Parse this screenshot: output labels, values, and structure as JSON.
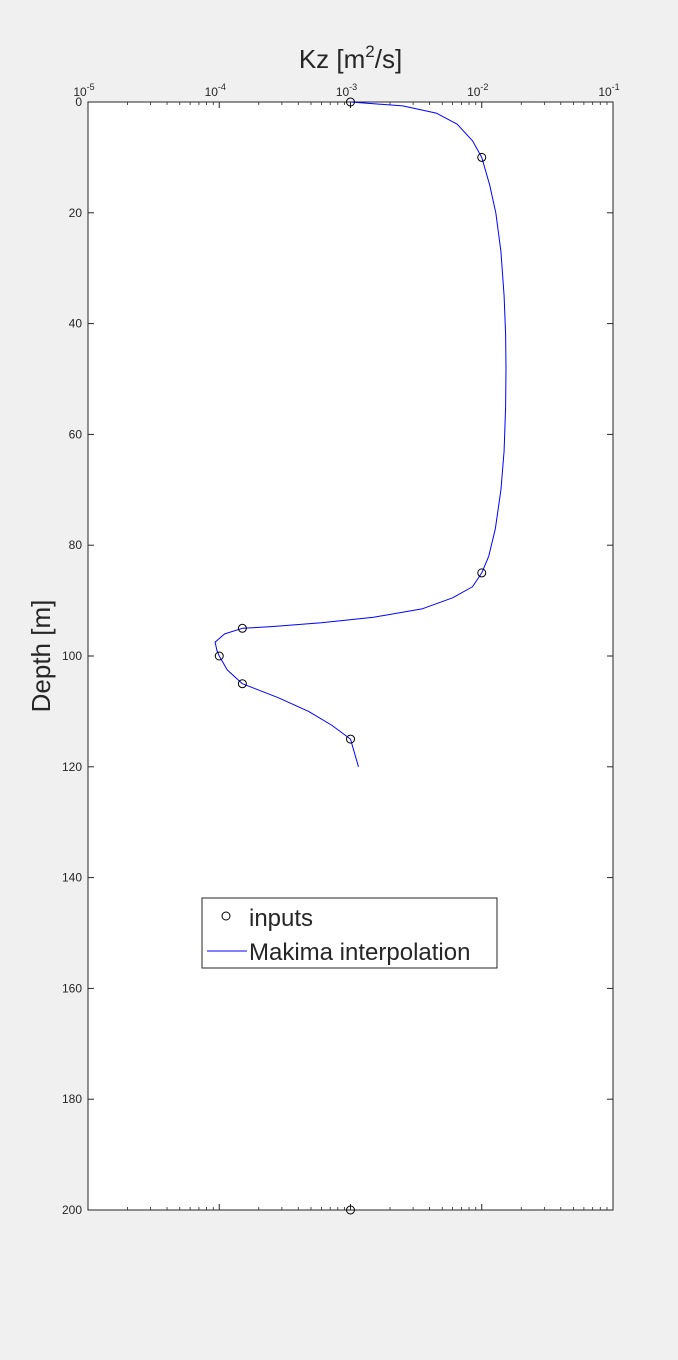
{
  "window": {
    "background": "#f0f0f0"
  },
  "chart_data": {
    "type": "line",
    "xlabel": {
      "base": "Kz [m",
      "superscript": "2",
      "suffix": "/s]"
    },
    "ylabel": "Depth [m]",
    "x_scale": "log",
    "xlim": [
      1e-05,
      0.1
    ],
    "ylim": [
      0,
      200
    ],
    "y_direction": "reversed (0 at top)",
    "x_axis_location": "top",
    "x_ticks": [
      {
        "value": 1e-05,
        "base": "10",
        "exp": "-5"
      },
      {
        "value": 0.0001,
        "base": "10",
        "exp": "-4"
      },
      {
        "value": 0.001,
        "base": "10",
        "exp": "-3"
      },
      {
        "value": 0.01,
        "base": "10",
        "exp": "-2"
      },
      {
        "value": 0.1,
        "base": "10",
        "exp": "-1"
      }
    ],
    "y_ticks": [
      0,
      20,
      40,
      60,
      80,
      100,
      120,
      140,
      160,
      180,
      200
    ],
    "grid": false,
    "legend_position": "center-left",
    "legend": [
      {
        "label": "inputs",
        "marker": "circle"
      },
      {
        "label": "Makima interpolation",
        "marker": "line"
      }
    ],
    "series": [
      {
        "name": "inputs",
        "style": "markers",
        "color": "#000000",
        "points": [
          {
            "kz": 0.001,
            "depth": 0
          },
          {
            "kz": 0.01,
            "depth": 10
          },
          {
            "kz": 0.01,
            "depth": 85
          },
          {
            "kz": 0.00015,
            "depth": 95
          },
          {
            "kz": 0.0001,
            "depth": 100
          },
          {
            "kz": 0.00015,
            "depth": 105
          },
          {
            "kz": 0.001,
            "depth": 115
          },
          {
            "kz": 0.001,
            "depth": 200
          }
        ]
      },
      {
        "name": "Makima interpolation",
        "style": "line",
        "color": "#0000ff",
        "points": [
          {
            "kz": 0.001,
            "depth": 0
          },
          {
            "kz": 0.0025,
            "depth": 0.7
          },
          {
            "kz": 0.0045,
            "depth": 2
          },
          {
            "kz": 0.0065,
            "depth": 4
          },
          {
            "kz": 0.0085,
            "depth": 7
          },
          {
            "kz": 0.01,
            "depth": 10
          },
          {
            "kz": 0.0115,
            "depth": 15
          },
          {
            "kz": 0.0128,
            "depth": 20
          },
          {
            "kz": 0.014,
            "depth": 27
          },
          {
            "kz": 0.0148,
            "depth": 35
          },
          {
            "kz": 0.0152,
            "depth": 42
          },
          {
            "kz": 0.0153,
            "depth": 48
          },
          {
            "kz": 0.0152,
            "depth": 55
          },
          {
            "kz": 0.0148,
            "depth": 63
          },
          {
            "kz": 0.014,
            "depth": 70
          },
          {
            "kz": 0.0127,
            "depth": 77
          },
          {
            "kz": 0.0113,
            "depth": 82
          },
          {
            "kz": 0.01,
            "depth": 85
          },
          {
            "kz": 0.0085,
            "depth": 87.5
          },
          {
            "kz": 0.006,
            "depth": 89.5
          },
          {
            "kz": 0.0035,
            "depth": 91.5
          },
          {
            "kz": 0.0015,
            "depth": 93
          },
          {
            "kz": 0.0006,
            "depth": 94
          },
          {
            "kz": 0.00025,
            "depth": 94.7
          },
          {
            "kz": 0.00015,
            "depth": 95
          },
          {
            "kz": 0.00011,
            "depth": 96
          },
          {
            "kz": 9.3e-05,
            "depth": 97.5
          },
          {
            "kz": 9.6e-05,
            "depth": 99
          },
          {
            "kz": 0.0001,
            "depth": 100
          },
          {
            "kz": 0.000115,
            "depth": 102.5
          },
          {
            "kz": 0.00015,
            "depth": 105
          },
          {
            "kz": 0.00028,
            "depth": 107.5
          },
          {
            "kz": 0.00048,
            "depth": 110
          },
          {
            "kz": 0.00072,
            "depth": 112.5
          },
          {
            "kz": 0.001,
            "depth": 115
          },
          {
            "kz": 0.00115,
            "depth": 120
          }
        ]
      }
    ]
  }
}
